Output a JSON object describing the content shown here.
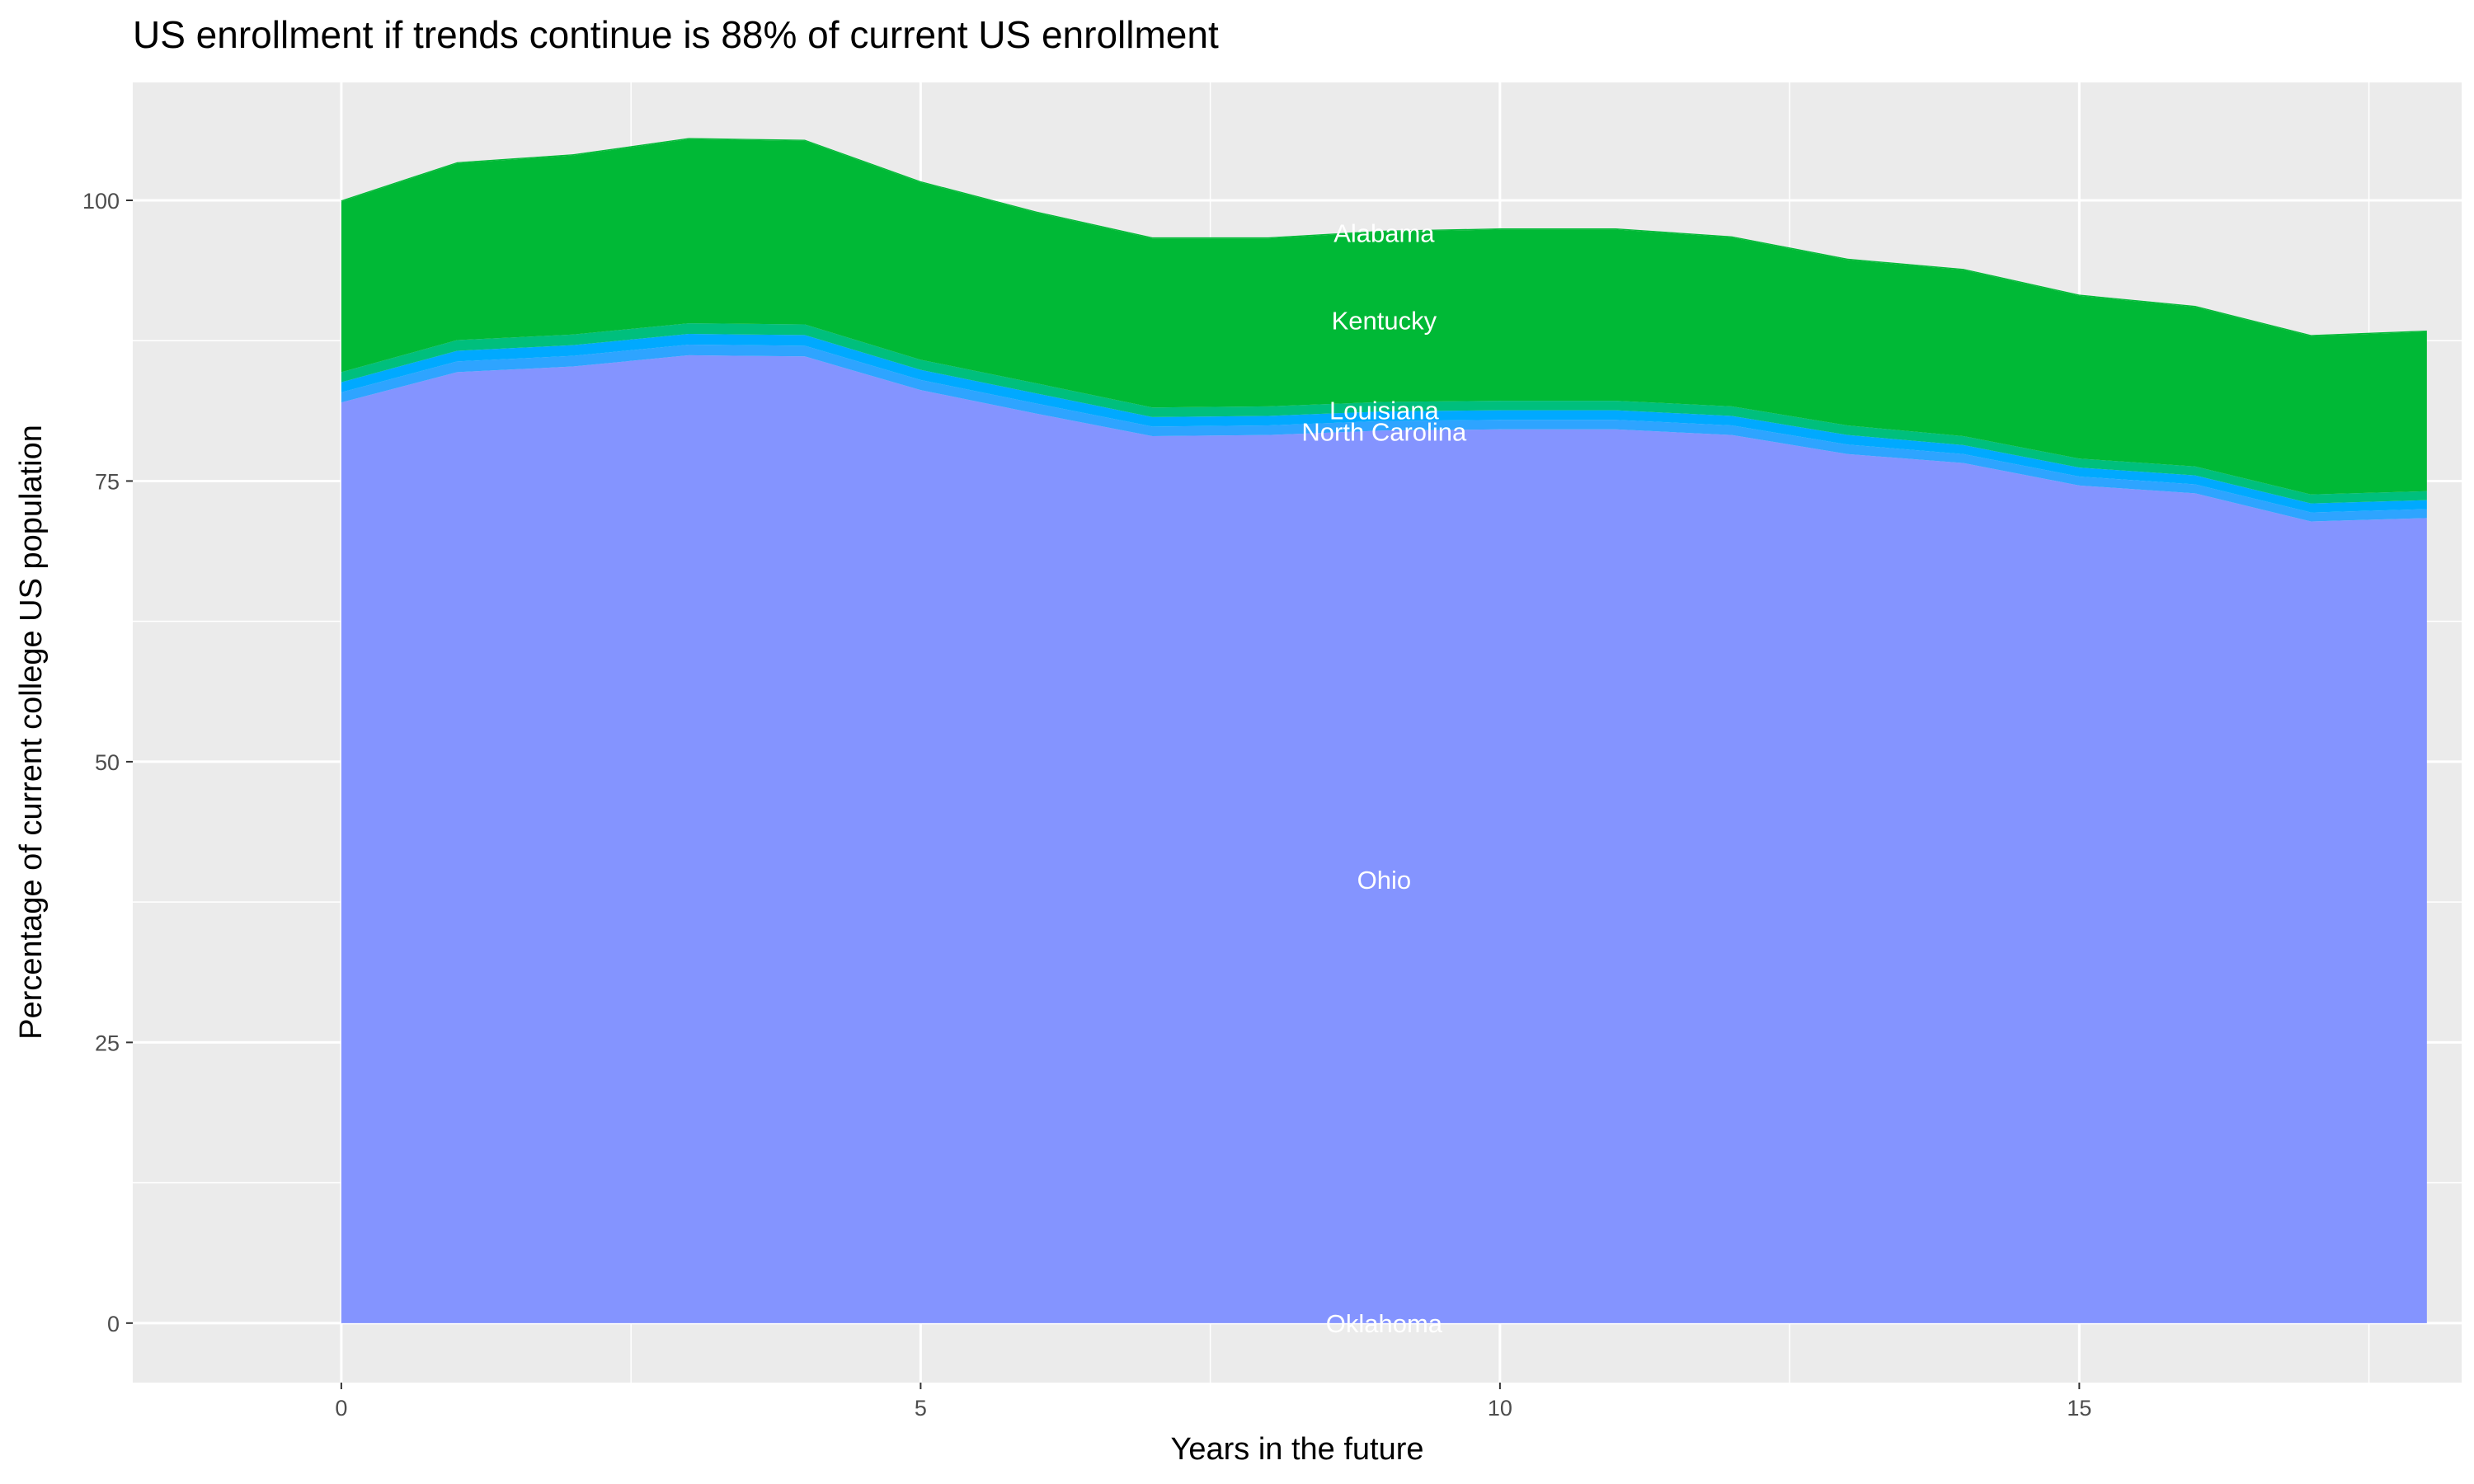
{
  "chart_data": {
    "type": "area",
    "stacked": true,
    "title": "US enrollment if trends continue is 88% of current US enrollment",
    "xlabel": "Years in the future",
    "ylabel": "Percentage of current college US population",
    "xlim": [
      -1.8,
      18.3
    ],
    "ylim": [
      -5.3,
      110.5
    ],
    "x_ticks": [
      0,
      5,
      10,
      15
    ],
    "y_ticks": [
      0,
      25,
      50,
      75,
      100
    ],
    "grid": true,
    "panel_background": "#EBEBEB",
    "x": [
      0,
      1,
      2,
      3,
      4,
      5,
      6,
      7,
      8,
      9,
      10,
      11,
      12,
      13,
      14,
      15,
      16,
      17,
      18
    ],
    "series": [
      {
        "name": "Oklahoma",
        "color": "#8494FF",
        "values": [
          0,
          0,
          0,
          0,
          0,
          0,
          0,
          0,
          0,
          0,
          0,
          0,
          0,
          0,
          0,
          0,
          0,
          0,
          0
        ]
      },
      {
        "name": "Ohio",
        "color": "#8494FF",
        "values": [
          82.0,
          84.7,
          85.2,
          86.2,
          86.1,
          83.1,
          81.0,
          79.0,
          79.1,
          79.5,
          79.6,
          79.6,
          79.1,
          77.4,
          76.6,
          74.6,
          73.9,
          71.4,
          71.7
        ]
      },
      {
        "name": "North Carolina",
        "color": "#2EA4FF",
        "values": [
          0.9,
          0.95,
          0.95,
          0.95,
          0.95,
          0.9,
          0.9,
          0.85,
          0.85,
          0.85,
          0.85,
          0.85,
          0.85,
          0.85,
          0.8,
          0.8,
          0.8,
          0.8,
          0.8
        ]
      },
      {
        "name": "",
        "color": "#00A9FF",
        "values": [
          0.9,
          0.95,
          0.95,
          0.95,
          0.95,
          0.9,
          0.9,
          0.85,
          0.85,
          0.85,
          0.85,
          0.85,
          0.85,
          0.85,
          0.8,
          0.8,
          0.8,
          0.8,
          0.8
        ]
      },
      {
        "name": "Louisiana",
        "color": "#00BF7D",
        "values": [
          0.9,
          0.95,
          0.95,
          0.95,
          0.95,
          0.9,
          0.9,
          0.85,
          0.85,
          0.85,
          0.85,
          0.85,
          0.85,
          0.85,
          0.8,
          0.8,
          0.8,
          0.8,
          0.8
        ]
      },
      {
        "name": "Kentucky",
        "color": "#00B936",
        "values": [
          15.2,
          15.75,
          15.95,
          16.4,
          16.35,
          15.8,
          15.2,
          15.05,
          14.95,
          15.15,
          15.25,
          15.25,
          15.05,
          14.75,
          14.8,
          14.5,
          14.2,
          14.1,
          14.2
        ]
      },
      {
        "name": "Alabama",
        "color": "#00B936",
        "values": [
          0.1,
          0.1,
          0.1,
          0.1,
          0.1,
          0.1,
          0.1,
          0.1,
          0.1,
          0.1,
          0.1,
          0.1,
          0.1,
          0.1,
          0.1,
          0.1,
          0.1,
          0.1,
          0.1
        ]
      }
    ],
    "label_x": 9,
    "annotations": [
      {
        "text": "Oklahoma",
        "y": 0
      },
      {
        "text": "Ohio",
        "y": 39.5
      },
      {
        "text": "North Carolina",
        "y": 79.4
      },
      {
        "text": "Louisiana",
        "y": 81.3
      },
      {
        "text": "Kentucky",
        "y": 89.3
      },
      {
        "text": "Alabama",
        "y": 97.1
      }
    ]
  }
}
